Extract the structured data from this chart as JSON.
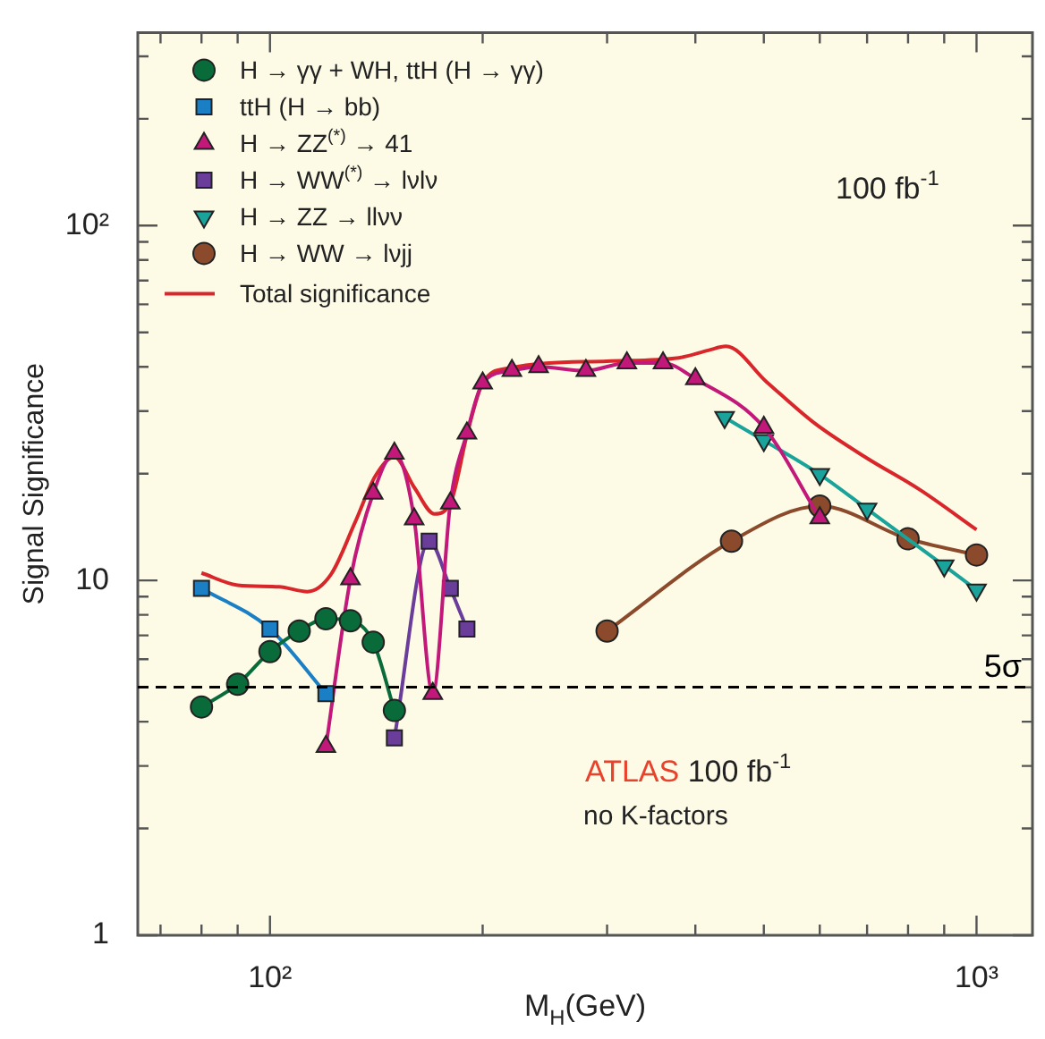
{
  "chart_data": {
    "type": "line",
    "xlabel": "M$_{H}$(GeV)",
    "ylabel": "Signal Significance",
    "log": "xy",
    "legend": "top left",
    "xlim": [
      65,
      1200
    ],
    "ylim": [
      1,
      350
    ],
    "xticks": [
      {
        "value": 70,
        "label": null
      },
      {
        "value": 80,
        "label": null
      },
      {
        "value": 90,
        "label": null
      },
      {
        "value": 100,
        "label": "10²"
      },
      {
        "value": 200,
        "label": null
      },
      {
        "value": 300,
        "label": null
      },
      {
        "value": 400,
        "label": null
      },
      {
        "value": 500,
        "label": null
      },
      {
        "value": 600,
        "label": null
      },
      {
        "value": 700,
        "label": null
      },
      {
        "value": 800,
        "label": null
      },
      {
        "value": 900,
        "label": null
      },
      {
        "value": 1000,
        "label": "10³"
      }
    ],
    "yticks": [
      1,
      {
        "value": 2,
        "label": null
      },
      {
        "value": 3,
        "label": null
      },
      {
        "value": 4,
        "label": null
      },
      {
        "value": 5,
        "label": null
      },
      {
        "value": 6,
        "label": null
      },
      {
        "value": 7,
        "label": null
      },
      {
        "value": 8,
        "label": null
      },
      {
        "value": 9,
        "label": null
      },
      10,
      {
        "value": 20,
        "label": null
      },
      {
        "value": 30,
        "label": null
      },
      {
        "value": 40,
        "label": null
      },
      {
        "value": 50,
        "label": null
      },
      {
        "value": 60,
        "label": null
      },
      {
        "value": 70,
        "label": null
      },
      {
        "value": 80,
        "label": null
      },
      {
        "value": 90,
        "label": null
      },
      {
        "value": 100,
        "label": "10²"
      },
      {
        "value": 200,
        "label": null
      },
      {
        "value": 300,
        "label": null
      }
    ],
    "series": [
      {
        "name": "H → γγ + WH, ttH (H → γγ)",
        "color": "#0a6b3a",
        "marker": "circle",
        "x": [
          80,
          90,
          100,
          110,
          120,
          130,
          140,
          150
        ],
        "values": [
          4.4,
          5.1,
          6.3,
          7.2,
          7.8,
          7.7,
          6.7,
          4.3
        ]
      },
      {
        "name": "ttH (H → bb)",
        "color": "#1a7fc4",
        "marker": "square",
        "x": [
          80,
          100,
          120
        ],
        "values": [
          9.5,
          7.3,
          4.8
        ]
      },
      {
        "name": "H → ZZ$^{(*)}$ → 41",
        "color": "#c2187a",
        "marker": "triangle",
        "x": [
          120,
          130,
          140,
          150,
          160,
          170,
          180,
          190,
          200,
          220,
          240,
          280,
          320,
          360,
          400,
          500,
          600
        ],
        "values": [
          3.4,
          10.1,
          17.6,
          22.8,
          14.9,
          4.8,
          16.5,
          26,
          36,
          39,
          40,
          39,
          41,
          41,
          37,
          27,
          15
        ]
      },
      {
        "name": "H → WW$^{(*)}$ → lνlν",
        "color": "#6a3d9a",
        "marker": "square",
        "x": [
          150,
          168,
          180,
          190
        ],
        "values": [
          3.6,
          12.9,
          9.5,
          7.3
        ]
      },
      {
        "name": "H → ZZ → llνν",
        "color": "#1aa39a",
        "marker": "triangle-down",
        "x": [
          440,
          500,
          600,
          700,
          900,
          1000
        ],
        "values": [
          28.8,
          24.8,
          19.9,
          15.9,
          11,
          9.4
        ]
      },
      {
        "name": "H → WW → lνjj",
        "color": "#8b4a2b",
        "marker": "circle",
        "x": [
          300,
          450,
          600,
          800,
          1000
        ],
        "values": [
          7.2,
          12.9,
          16.2,
          13.1,
          11.8
        ]
      },
      {
        "name": "Total significance",
        "color": "#d9262b",
        "marker": "none",
        "x": [
          80,
          90,
          103,
          113,
          122,
          132,
          141,
          150,
          160,
          171,
          181,
          190,
          200,
          217,
          300,
          379,
          417,
          442,
          505,
          589,
          700,
          832,
          1000
        ],
        "values": [
          10.5,
          9.7,
          9.6,
          9.3,
          10.4,
          14.6,
          19.7,
          22.3,
          18.3,
          15.4,
          17,
          25.7,
          36,
          39.6,
          41.5,
          42.4,
          44.5,
          45.7,
          36.2,
          27.8,
          22.1,
          18,
          13.9
        ]
      }
    ],
    "ref_lines": [
      {
        "axis": "y",
        "value": 5,
        "label": "5σ",
        "color": "#000000",
        "line_style": "dashed"
      }
    ],
    "annotations": [
      "100 fb$^{-1}$",
      "ATLAS 100 fb$^{-1}$",
      "no K-factors"
    ]
  }
}
